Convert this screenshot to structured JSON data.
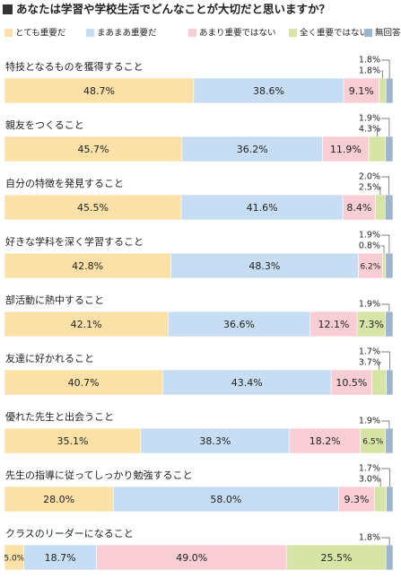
{
  "chart_data": {
    "type": "stacked_bar_horizontal",
    "title": "あなたは学習や学校生活でどんなことが大切だと思いますか？",
    "categories": [
      "特技となるものを獲得すること",
      "親友をつくること",
      "自分の特徴を発見すること",
      "好きな学科を深く学習すること",
      "部活動に熱中すること",
      "友達に好かれること",
      "優れた先生と出会うこと",
      "先生の指導に従ってしっかり勉強すること",
      "クラスのリーダーになること"
    ],
    "series": [
      {
        "name": "とても重要だ",
        "color": "#fbe0a8",
        "values": [
          48.7,
          45.7,
          45.5,
          42.8,
          42.1,
          40.7,
          35.1,
          28.0,
          5.0
        ],
        "value_labels": [
          "48.7%",
          "45.7%",
          "45.5%",
          "42.8%",
          "42.1%",
          "40.7%",
          "35.1%",
          "28.0%",
          "5.0%"
        ]
      },
      {
        "name": "まあまあ重要だ",
        "color": "#c6ddf3",
        "values": [
          38.6,
          36.2,
          41.6,
          48.3,
          36.6,
          43.4,
          38.3,
          58.0,
          18.7
        ],
        "value_labels": [
          "38.6%",
          "36.2%",
          "41.6%",
          "48.3%",
          "36.6%",
          "43.4%",
          "38.3%",
          "58.0%",
          "18.7%"
        ]
      },
      {
        "name": "あまり重要ではない",
        "color": "#f8cdd4",
        "values": [
          9.1,
          11.9,
          8.4,
          6.2,
          12.1,
          10.5,
          18.2,
          9.3,
          49.0
        ],
        "value_labels": [
          "9.1%",
          "11.9%",
          "8.4%",
          "6.2%",
          "12.1%",
          "10.5%",
          "18.2%",
          "9.3%",
          "49.0%"
        ]
      },
      {
        "name": "全く重要ではない",
        "color": "#d6e4a5",
        "values": [
          1.8,
          4.3,
          2.5,
          0.8,
          7.3,
          3.7,
          6.5,
          3.0,
          25.5
        ],
        "value_labels": [
          "1.8%",
          "4.3%",
          "2.5%",
          "0.8%",
          "7.3%",
          "3.7%",
          "6.5%",
          "3.0%",
          "25.5%"
        ]
      },
      {
        "name": "無回答",
        "color": "#9fb4cd",
        "values": [
          1.8,
          1.9,
          2.0,
          1.9,
          1.9,
          1.7,
          1.9,
          1.7,
          1.8
        ],
        "value_labels": [
          "1.8%",
          "1.9%",
          "2.0%",
          "1.9%",
          "1.9%",
          "1.7%",
          "1.9%",
          "1.7%",
          "1.8%"
        ]
      }
    ]
  }
}
